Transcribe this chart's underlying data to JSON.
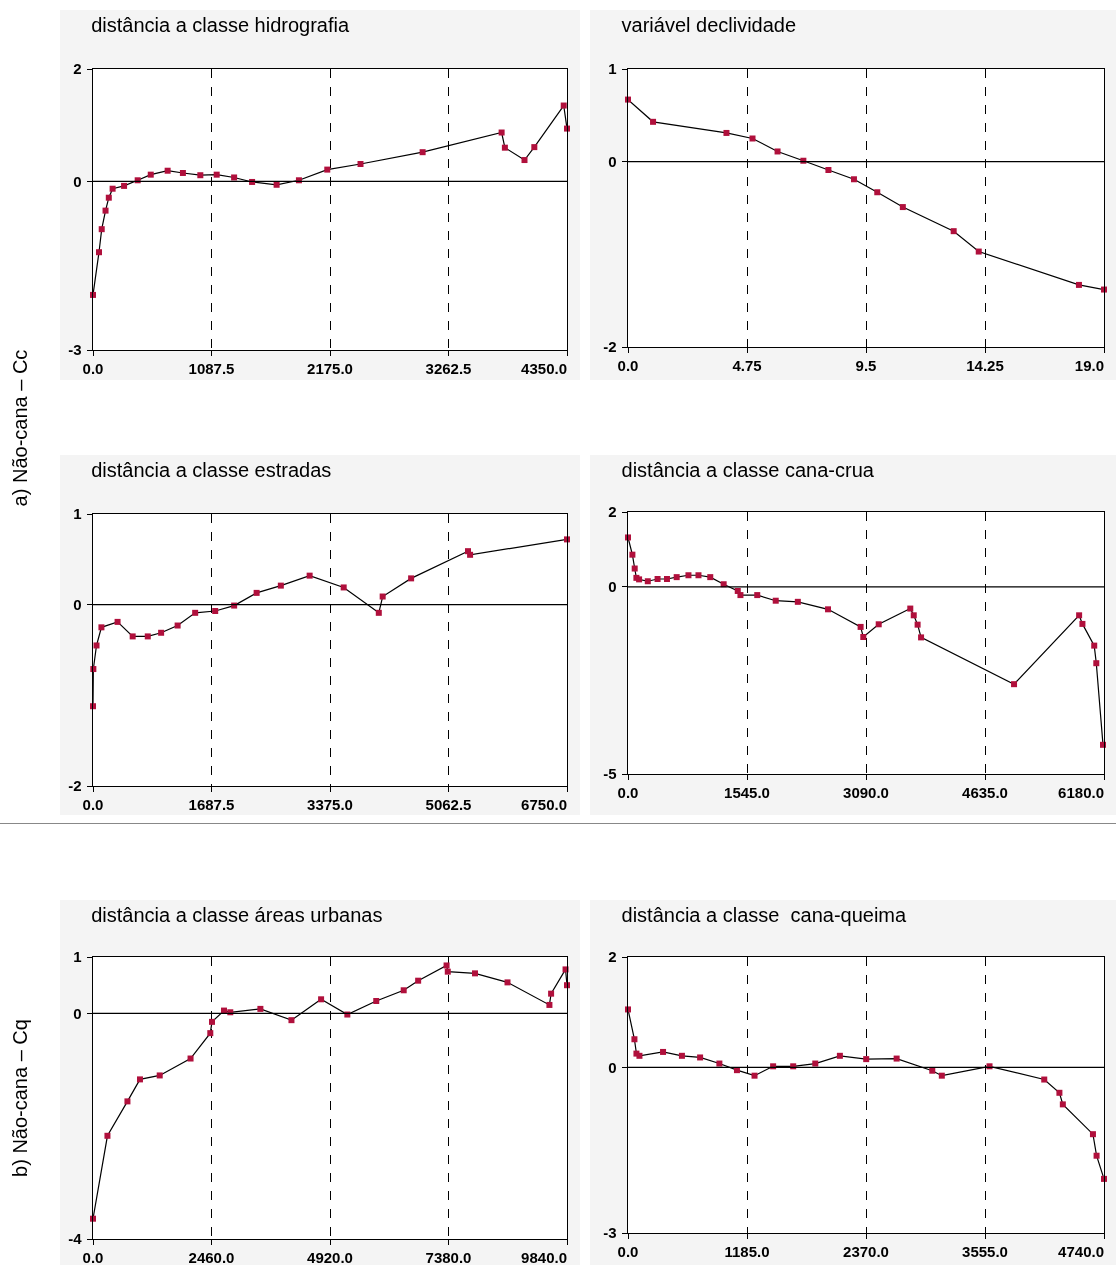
{
  "chart_data": [
    {
      "type": "line",
      "title": "distância a classe hidrografia",
      "ylabel": "a) Não-cana – Cc",
      "marker": "square",
      "grid": "x",
      "xlim": [
        0,
        4350
      ],
      "ylim": [
        -3,
        2
      ],
      "xticks": [
        {
          "value": 0,
          "label": "0.0"
        },
        1087.5,
        {
          "value": 2175,
          "label": "2175.0"
        },
        3262.5,
        {
          "value": 4350,
          "label": "4350.0"
        }
      ],
      "yticks": [
        -3,
        0,
        2
      ],
      "ref_lines": [
        {
          "axis": "y",
          "value": 0,
          "color": "#000000"
        }
      ],
      "series": [
        {
          "color": "#b0103c",
          "x": [
            0,
            55,
            80,
            115,
            145,
            180,
            285,
            410,
            530,
            685,
            825,
            985,
            1135,
            1295,
            1460,
            1685,
            1890,
            2150,
            2455,
            3025,
            3750,
            3780,
            3960,
            4050,
            4320,
            4350
          ],
          "values": [
            -2.02,
            -1.26,
            -0.85,
            -0.52,
            -0.29,
            -0.13,
            -0.08,
            0.02,
            0.12,
            0.19,
            0.15,
            0.11,
            0.12,
            0.07,
            -0.01,
            -0.06,
            0.02,
            0.21,
            0.31,
            0.52,
            0.87,
            0.6,
            0.38,
            0.61,
            1.35,
            0.94
          ]
        }
      ]
    },
    {
      "type": "line",
      "title": "variável declividade",
      "marker": "square",
      "grid": "x",
      "xlim": [
        0,
        19
      ],
      "ylim": [
        -2,
        1
      ],
      "xticks": [
        {
          "value": 0,
          "label": "0.0"
        },
        4.75,
        9.5,
        14.25,
        {
          "value": 19,
          "label": "19.0"
        }
      ],
      "yticks": [
        -2,
        0,
        1
      ],
      "ref_lines": [
        {
          "axis": "y",
          "value": 0,
          "color": "#000000"
        }
      ],
      "series": [
        {
          "color": "#b0103c",
          "x": [
            0,
            1,
            3.93,
            4.97,
            5.97,
            7,
            8,
            9.02,
            9.95,
            10.97,
            13,
            14,
            18,
            19
          ],
          "values": [
            0.67,
            0.43,
            0.31,
            0.25,
            0.11,
            0.01,
            -0.09,
            -0.19,
            -0.33,
            -0.49,
            -0.75,
            -0.97,
            -1.33,
            -1.38
          ]
        }
      ]
    },
    {
      "type": "line",
      "title": "distância a classe estradas",
      "marker": "square",
      "grid": "x",
      "xlim": [
        0,
        6750
      ],
      "ylim": [
        -2,
        1
      ],
      "xticks": [
        {
          "value": 0,
          "label": "0.0"
        },
        1687.5,
        {
          "value": 3375,
          "label": "3375.0"
        },
        5062.5,
        {
          "value": 6750,
          "label": "6750.0"
        }
      ],
      "yticks": [
        -2,
        0,
        1
      ],
      "ref_lines": [
        {
          "axis": "y",
          "value": 0,
          "color": "#000000"
        }
      ],
      "series": [
        {
          "color": "#b0103c",
          "x": [
            0,
            5,
            50,
            120,
            350,
            565,
            780,
            970,
            1205,
            1455,
            1740,
            2010,
            2330,
            2675,
            3085,
            3570,
            4070,
            4125,
            4530,
            5340,
            5370,
            6750
          ],
          "values": [
            -1.12,
            -0.71,
            -0.45,
            -0.25,
            -0.19,
            -0.35,
            -0.35,
            -0.31,
            -0.23,
            -0.09,
            -0.07,
            -0.01,
            0.13,
            0.21,
            0.32,
            0.19,
            -0.09,
            0.09,
            0.29,
            0.59,
            0.55,
            0.72
          ]
        }
      ]
    },
    {
      "type": "line",
      "title": "distância a classe cana-crua",
      "marker": "square",
      "grid": "x",
      "xlim": [
        0,
        6180
      ],
      "ylim": [
        -5,
        2
      ],
      "xticks": [
        {
          "value": 0,
          "label": "0.0"
        },
        {
          "value": 1545,
          "label": "1545.0"
        },
        {
          "value": 3090,
          "label": "3090.0"
        },
        {
          "value": 4635,
          "label": "4635.0"
        },
        {
          "value": 6180,
          "label": "6180.0"
        }
      ],
      "yticks": [
        -5,
        0,
        2
      ],
      "ref_lines": [
        {
          "axis": "y",
          "value": 0,
          "color": "#000000"
        }
      ],
      "series": [
        {
          "color": "#b0103c",
          "x": [
            0,
            57,
            87,
            109,
            144,
            257,
            384,
            506,
            632,
            785,
            915,
            1068,
            1242,
            1425,
            1460,
            1678,
            1918,
            2205,
            2597,
            3020,
            3055,
            3255,
            3665,
            3710,
            3760,
            3805,
            5012,
            5857,
            5900,
            6053,
            6080,
            6167
          ],
          "values": [
            1.32,
            0.86,
            0.49,
            0.24,
            0.2,
            0.15,
            0.21,
            0.21,
            0.26,
            0.31,
            0.31,
            0.26,
            0.07,
            -0.11,
            -0.22,
            -0.22,
            -0.37,
            -0.4,
            -0.6,
            -1.07,
            -1.34,
            -1.0,
            -0.58,
            -0.76,
            -1.01,
            -1.35,
            -2.6,
            -0.76,
            -0.99,
            -1.57,
            -2.04,
            -4.22
          ]
        }
      ]
    },
    {
      "type": "line",
      "title": "distância a classe áreas urbanas",
      "ylabel": "b) Não-cana – Cq",
      "marker": "square",
      "grid": "x",
      "xlim": [
        0,
        9840
      ],
      "ylim": [
        -4,
        1
      ],
      "xticks": [
        {
          "value": 0,
          "label": "0.0"
        },
        {
          "value": 2460,
          "label": "2460.0"
        },
        {
          "value": 4920,
          "label": "4920.0"
        },
        {
          "value": 7380,
          "label": "7380.0"
        },
        {
          "value": 9840,
          "label": "9840.0"
        }
      ],
      "yticks": [
        -4,
        0,
        1
      ],
      "ref_lines": [
        {
          "axis": "y",
          "value": 0,
          "color": "#000000"
        }
      ],
      "series": [
        {
          "color": "#b0103c",
          "x": [
            0,
            300,
            715,
            975,
            1385,
            2025,
            2435,
            2470,
            2720,
            2850,
            3475,
            4120,
            4735,
            5280,
            5880,
            6450,
            6750,
            7340,
            7365,
            7930,
            8605,
            9475,
            9510,
            9810,
            9840
          ],
          "values": [
            -3.64,
            -2.17,
            -1.56,
            -1.17,
            -1.1,
            -0.8,
            -0.35,
            -0.15,
            0.05,
            0.02,
            0.08,
            -0.12,
            0.25,
            -0.02,
            0.22,
            0.41,
            0.58,
            0.85,
            0.74,
            0.71,
            0.55,
            0.15,
            0.35,
            0.78,
            0.5
          ]
        }
      ]
    },
    {
      "type": "line",
      "title": "distância a classe  cana-queima",
      "marker": "square",
      "grid": "x",
      "xlim": [
        0,
        4740
      ],
      "ylim": [
        -3,
        2
      ],
      "xticks": [
        {
          "value": 0,
          "label": "0.0"
        },
        {
          "value": 1185,
          "label": "1185.0"
        },
        {
          "value": 2370,
          "label": "2370.0"
        },
        {
          "value": 3555,
          "label": "3555.0"
        },
        {
          "value": 4740,
          "label": "4740.0"
        }
      ],
      "yticks": [
        -3,
        0,
        2
      ],
      "ref_lines": [
        {
          "axis": "y",
          "value": 0,
          "color": "#000000"
        }
      ],
      "series": [
        {
          "color": "#b0103c",
          "x": [
            0,
            64,
            84,
            114,
            349,
            537,
            718,
            910,
            1085,
            1260,
            1445,
            1645,
            1865,
            2110,
            2372,
            2675,
            3030,
            3125,
            3600,
            4145,
            4296,
            4330,
            4630,
            4666,
            4740
          ],
          "values": [
            1.05,
            0.51,
            0.25,
            0.21,
            0.28,
            0.21,
            0.18,
            0.07,
            -0.05,
            -0.15,
            0.02,
            0.02,
            0.07,
            0.21,
            0.15,
            0.16,
            -0.06,
            -0.15,
            0.02,
            -0.22,
            -0.46,
            -0.67,
            -1.21,
            -1.6,
            -2.02
          ]
        }
      ]
    }
  ]
}
